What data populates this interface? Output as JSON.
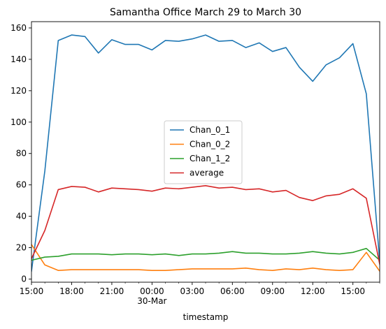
{
  "chart_data": {
    "type": "line",
    "title": "Samantha Office March 29 to March 30",
    "xlabel": "timestamp",
    "ylabel": "",
    "x_hours": [
      0,
      1,
      2,
      3,
      4,
      5,
      6,
      7,
      8,
      9,
      10,
      11,
      12,
      13,
      14,
      15,
      16,
      17,
      18,
      19,
      20,
      21,
      22,
      23,
      24,
      25,
      26
    ],
    "xlim": [
      0,
      26
    ],
    "ylim": [
      -2,
      164
    ],
    "x_ticks": [
      {
        "hour": 0,
        "label": "15:00",
        "sublabel": ""
      },
      {
        "hour": 3,
        "label": "18:00",
        "sublabel": ""
      },
      {
        "hour": 6,
        "label": "21:00",
        "sublabel": ""
      },
      {
        "hour": 9,
        "label": "00:00",
        "sublabel": "30-Mar"
      },
      {
        "hour": 12,
        "label": "03:00",
        "sublabel": ""
      },
      {
        "hour": 15,
        "label": "06:00",
        "sublabel": ""
      },
      {
        "hour": 18,
        "label": "09:00",
        "sublabel": ""
      },
      {
        "hour": 21,
        "label": "12:00",
        "sublabel": ""
      },
      {
        "hour": 24,
        "label": "15:00",
        "sublabel": ""
      }
    ],
    "y_ticks": [
      "0",
      "20",
      "40",
      "60",
      "80",
      "100",
      "120",
      "140",
      "160"
    ],
    "legend_position": "center",
    "series": [
      {
        "name": "Chan_0_1",
        "color": "#1f77b4",
        "values": [
          5,
          69,
          152,
          155.5,
          154.5,
          144,
          152.5,
          149.5,
          149.5,
          146,
          152,
          151.5,
          153,
          155.5,
          151.5,
          152,
          147.5,
          150.5,
          145,
          147.5,
          135,
          126,
          136.5,
          141,
          150,
          118,
          11
        ]
      },
      {
        "name": "Chan_0_2",
        "color": "#ff7f0e",
        "values": [
          22,
          9,
          5.5,
          6,
          6,
          6,
          6,
          6,
          6,
          5.5,
          5.5,
          6,
          6.5,
          6.5,
          6.5,
          6.5,
          7,
          6,
          5.5,
          6.5,
          6,
          7,
          6,
          5.5,
          6,
          17,
          5
        ]
      },
      {
        "name": "Chan_1_2",
        "color": "#2ca02c",
        "values": [
          12,
          14,
          14.5,
          16,
          16,
          16,
          15.5,
          16,
          16,
          15.5,
          16,
          15,
          16,
          16,
          16.5,
          17.5,
          16.5,
          16.5,
          16,
          16,
          16.5,
          17.5,
          16.5,
          16,
          17,
          19.5,
          12
        ]
      },
      {
        "name": "average",
        "color": "#d62728",
        "values": [
          13,
          31,
          57,
          59,
          58.5,
          55.5,
          58,
          57.5,
          57,
          56,
          58,
          57.5,
          58.5,
          59.5,
          58,
          58.5,
          57,
          57.5,
          55.5,
          56.5,
          52,
          50,
          53,
          54,
          57.5,
          51.5,
          9.5
        ]
      }
    ]
  }
}
